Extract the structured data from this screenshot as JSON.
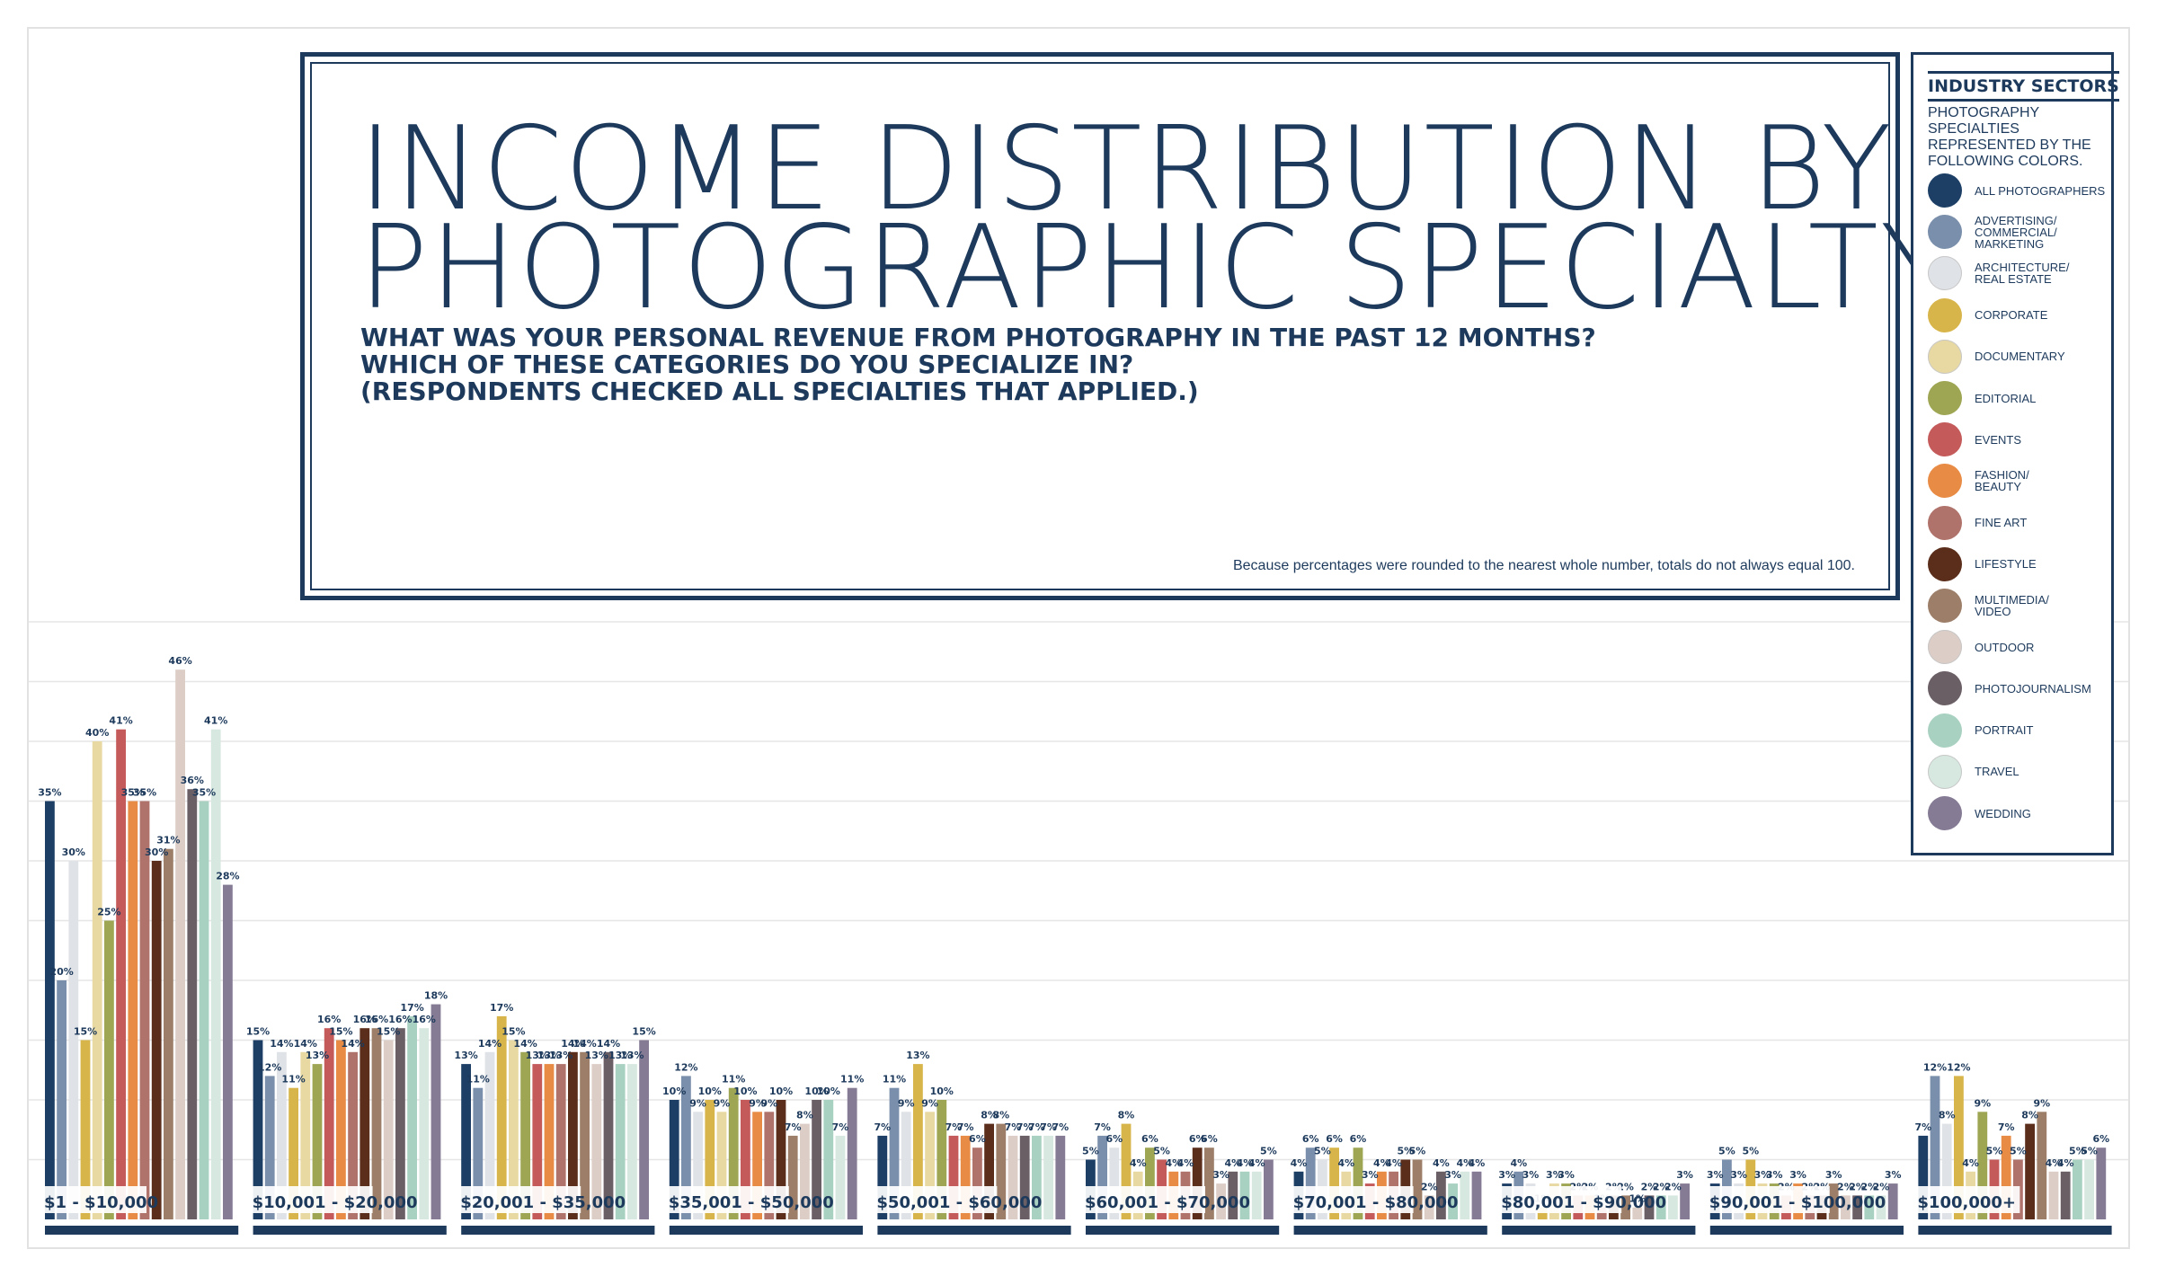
{
  "title": {
    "line1": "INCOME DISTRIBUTION BY",
    "line2": "PHOTOGRAPHIC SPECIALTY"
  },
  "questions": {
    "q1": "WHAT WAS YOUR PERSONAL REVENUE FROM PHOTOGRAPHY IN THE PAST 12 MONTHS?",
    "q2": "WHICH OF THESE CATEGORIES DO YOU SPECIALIZE IN?",
    "q3": "(RESPONDENTS CHECKED ALL SPECIALTIES THAT APPLIED.)"
  },
  "footnote": "Because percentages were rounded to the nearest whole number, totals do not always equal 100.",
  "legend": {
    "title": "INDUSTRY SECTORS",
    "subtitle": "PHOTOGRAPHY SPECIALTIES REPRESENTED BY THE FOLLOWING COLORS."
  },
  "chart_data": {
    "type": "bar",
    "title": "INCOME DISTRIBUTION BY PHOTOGRAPHIC SPECIALTY",
    "xlabel": "",
    "ylabel": "",
    "unit": "%",
    "ylim": [
      0,
      50
    ],
    "grid": true,
    "legend_position": "right",
    "categories": [
      "$1 - $10,000",
      "$10,001 - $20,000",
      "$20,001 - $35,000",
      "$35,001 - $50,000",
      "$50,001 - $60,000",
      "$60,001 - $70,000",
      "$70,001 - $80,000",
      "$80,001 - $90,000",
      "$90,001 - $100,000",
      "$100,000+"
    ],
    "series": [
      {
        "name": "ALL PHOTOGRAPHERS",
        "color": "#1d3f66",
        "values": [
          35,
          15,
          13,
          10,
          7,
          5,
          4,
          3,
          3,
          7
        ]
      },
      {
        "name": "ADVERTISING/ COMMERCIAL/ MARKETING",
        "color": "#7a8fab",
        "values": [
          20,
          12,
          11,
          12,
          11,
          7,
          6,
          4,
          5,
          12
        ]
      },
      {
        "name": "ARCHITECTURE/ REAL ESTATE",
        "color": "#dfe2e7",
        "values": [
          30,
          14,
          14,
          9,
          9,
          6,
          5,
          3,
          3,
          8
        ]
      },
      {
        "name": "CORPORATE",
        "color": "#d7b54a",
        "values": [
          15,
          11,
          17,
          10,
          13,
          8,
          6,
          1,
          5,
          12
        ]
      },
      {
        "name": "DOCUMENTARY",
        "color": "#e8d9a3",
        "values": [
          40,
          14,
          15,
          9,
          9,
          4,
          4,
          3,
          3,
          4
        ]
      },
      {
        "name": "EDITORIAL",
        "color": "#9ea653",
        "values": [
          25,
          13,
          14,
          11,
          10,
          6,
          6,
          3,
          3,
          9
        ]
      },
      {
        "name": "EVENTS",
        "color": "#c45a5a",
        "values": [
          41,
          16,
          13,
          10,
          7,
          5,
          3,
          2,
          2,
          5
        ]
      },
      {
        "name": "FASHION/ BEAUTY",
        "color": "#e88b45",
        "values": [
          35,
          15,
          13,
          9,
          7,
          4,
          4,
          2,
          3,
          7
        ]
      },
      {
        "name": "FINE ART",
        "color": "#b0736b",
        "values": [
          35,
          14,
          13,
          9,
          6,
          4,
          4,
          1,
          2,
          5
        ]
      },
      {
        "name": "LIFESTYLE",
        "color": "#5a2e1a",
        "values": [
          30,
          16,
          14,
          10,
          8,
          6,
          5,
          2,
          2,
          8
        ]
      },
      {
        "name": "MULTIMEDIA/ VIDEO",
        "color": "#9c7e69",
        "values": [
          31,
          16,
          14,
          7,
          8,
          6,
          5,
          2,
          3,
          9
        ]
      },
      {
        "name": "OUTDOOR",
        "color": "#dccdc6",
        "values": [
          46,
          15,
          13,
          8,
          7,
          3,
          2,
          1,
          2,
          4
        ]
      },
      {
        "name": "PHOTOJOURNALISM",
        "color": "#6b5f66",
        "values": [
          36,
          16,
          14,
          10,
          7,
          4,
          4,
          2,
          2,
          4
        ]
      },
      {
        "name": "PORTRAIT",
        "color": "#a9d1c1",
        "values": [
          35,
          17,
          13,
          10,
          7,
          4,
          3,
          2,
          2,
          5
        ]
      },
      {
        "name": "TRAVEL",
        "color": "#d7e8e0",
        "values": [
          41,
          16,
          13,
          7,
          7,
          4,
          4,
          2,
          2,
          5
        ]
      },
      {
        "name": "WEDDING",
        "color": "#857b94",
        "values": [
          28,
          18,
          15,
          11,
          7,
          5,
          4,
          3,
          3,
          6
        ]
      }
    ]
  }
}
